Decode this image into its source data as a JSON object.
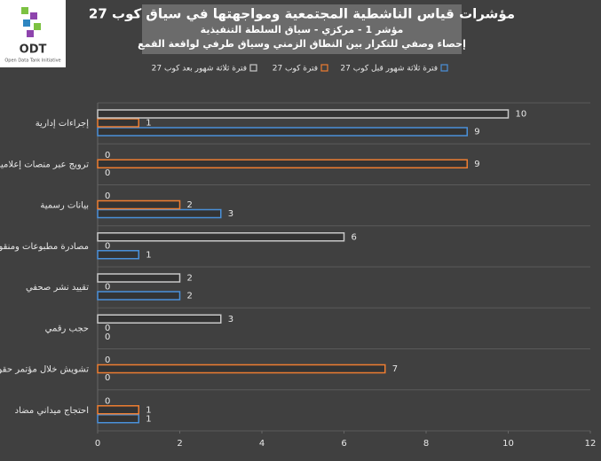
{
  "logo": {
    "name": "ODT",
    "tagline": "Open Data Tank Initiative"
  },
  "chart_data": {
    "type": "bar",
    "orientation": "horizontal",
    "title": "مؤشرات قياس الناشطية المجتمعية ومواجهتها في سياق كوب 27",
    "subtitle": "مؤشر 1 - مركزي - سياق السلطة التنفيذية",
    "caption": "إحصاء وصفي للتكرار بين النطاق الزمني وسياق طرفي لواقعة القمع",
    "categories": [
      "إجراءات إدارية",
      "ترويج عبر منصات إعلامية",
      "بيانات رسمية",
      "مصادرة مطبوعات ومنقولات",
      "تقييد نشر صحفي",
      "حجب رقمي",
      "تشويش خلال مؤتمر حقوقي",
      "احتجاج ميداني مضاد"
    ],
    "series": [
      {
        "name": "فترة ثلاثة شهور قبل كوب 27",
        "color": "#4a90d9",
        "values": [
          9,
          0,
          3,
          1,
          2,
          0,
          0,
          1
        ]
      },
      {
        "name": "فترة كوب 27",
        "color": "#ed7d31",
        "values": [
          1,
          9,
          2,
          0,
          0,
          0,
          7,
          1
        ]
      },
      {
        "name": "فترة ثلاثة شهور بعد كوب 27",
        "color": "#c8c8c8",
        "values": [
          10,
          0,
          0,
          6,
          2,
          3,
          0,
          0
        ]
      }
    ],
    "xlim": [
      0,
      12
    ],
    "xticks": [
      0,
      2,
      4,
      6,
      8,
      10,
      12
    ],
    "data_labels": true
  }
}
